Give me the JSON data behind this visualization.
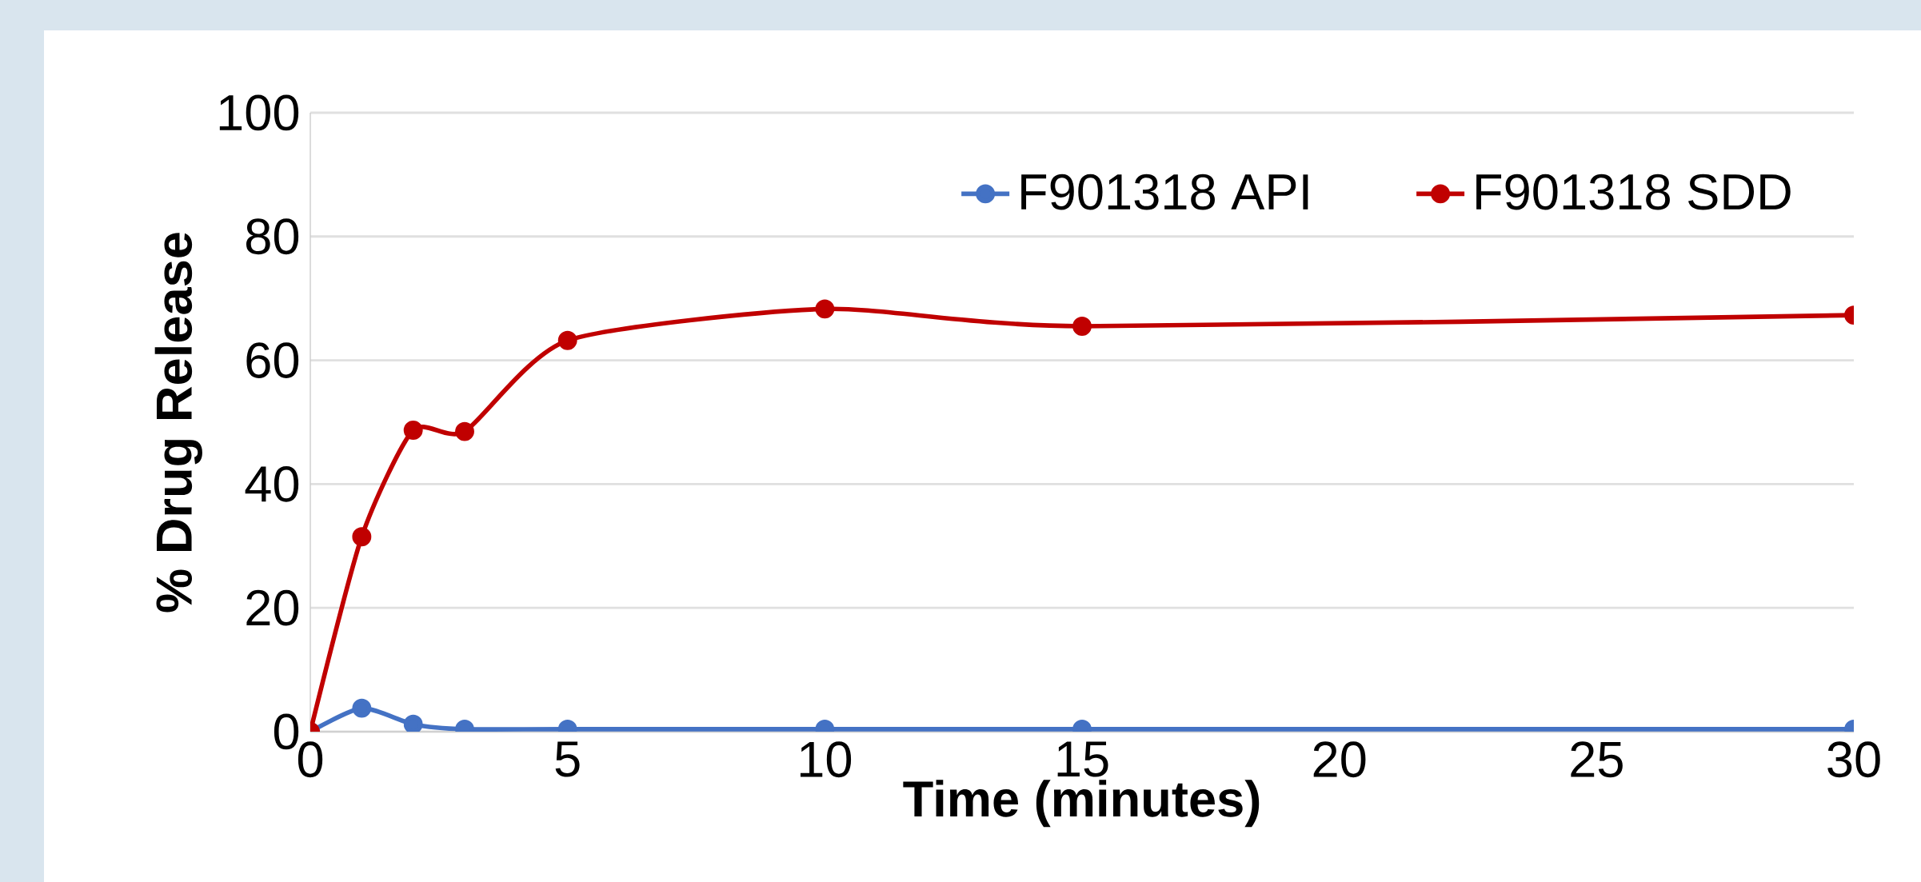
{
  "chart_data": {
    "type": "line",
    "xlabel": "Time (minutes)",
    "ylabel": "% Drug Release",
    "x": [
      0,
      1,
      2,
      3,
      5,
      10,
      15,
      30
    ],
    "xlim": [
      0,
      30
    ],
    "xticks": [
      0,
      5,
      10,
      15,
      20,
      25,
      30
    ],
    "ylim": [
      0,
      100
    ],
    "yticks": [
      0,
      20,
      40,
      60,
      80,
      100
    ],
    "grid": "y",
    "legend": "top right",
    "marker": "circle",
    "line_style": "solid",
    "series": [
      {
        "name": "F901318 API",
        "color": "#4472c4",
        "values": [
          0,
          3.8,
          1.2,
          0.4,
          0.4,
          0.4,
          0.4,
          0.4
        ]
      },
      {
        "name": "F901318 SDD",
        "color": "#c00000",
        "values": [
          0,
          31.5,
          48.7,
          48.5,
          63.2,
          68.3,
          65.5,
          67.3
        ]
      }
    ]
  }
}
